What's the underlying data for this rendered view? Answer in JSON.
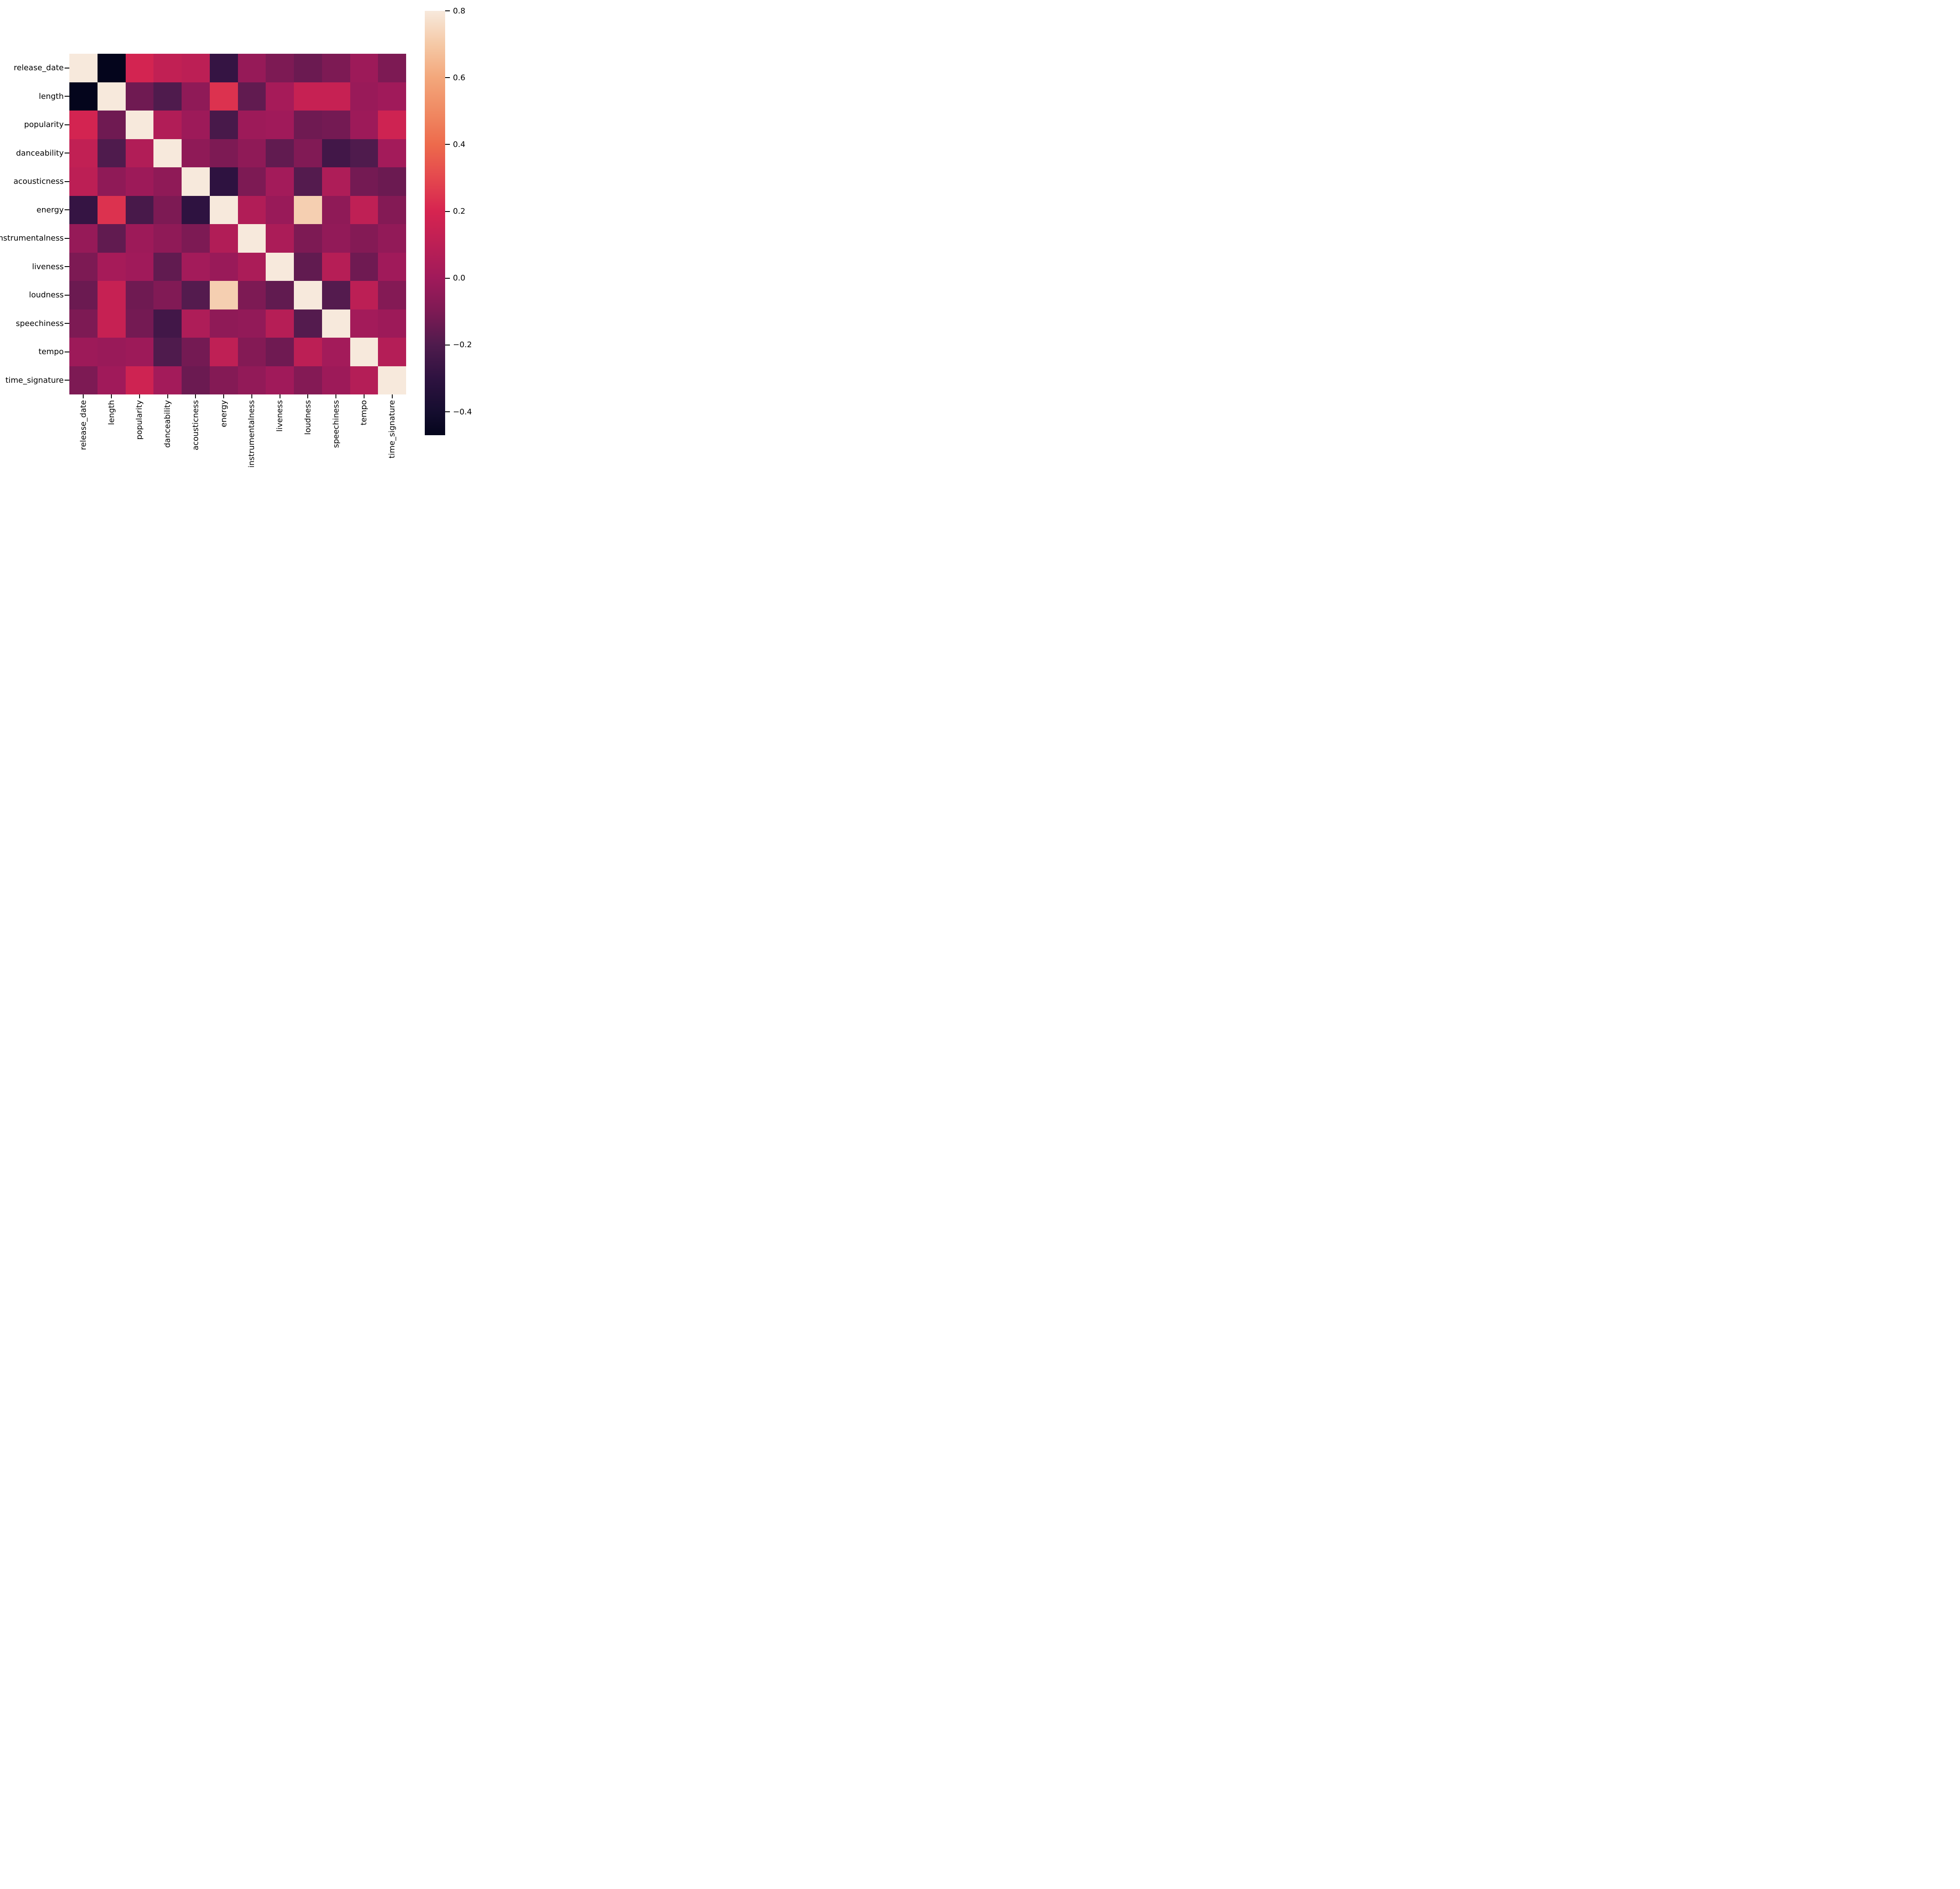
{
  "figure": {
    "background_color": "#FFFFFF",
    "text_color": "#000000"
  },
  "chart_data": {
    "type": "heatmap",
    "title": "",
    "variables": [
      "release_date",
      "length",
      "popularity",
      "danceability",
      "acousticness",
      "energy",
      "instrumentalness",
      "liveness",
      "loudness",
      "speechiness",
      "tempo",
      "time_signature"
    ],
    "matrix": [
      [
        1.0,
        -0.47,
        0.19,
        0.12,
        0.1,
        -0.28,
        -0.03,
        -0.1,
        -0.14,
        -0.1,
        -0.01,
        -0.1
      ],
      [
        -0.47,
        1.0,
        -0.13,
        -0.2,
        -0.05,
        0.24,
        -0.16,
        0.02,
        0.14,
        0.14,
        -0.02,
        0.0
      ],
      [
        0.19,
        -0.13,
        1.0,
        0.06,
        -0.01,
        -0.22,
        -0.01,
        0.0,
        -0.13,
        -0.12,
        -0.01,
        0.17
      ],
      [
        0.12,
        -0.2,
        0.06,
        1.0,
        -0.05,
        -0.1,
        -0.05,
        -0.16,
        -0.09,
        -0.24,
        -0.2,
        0.01
      ],
      [
        0.1,
        -0.05,
        -0.01,
        -0.05,
        1.0,
        -0.3,
        -0.1,
        0.01,
        -0.19,
        0.05,
        -0.12,
        -0.14
      ],
      [
        -0.28,
        0.24,
        -0.22,
        -0.1,
        -0.3,
        1.0,
        0.06,
        -0.02,
        0.72,
        -0.05,
        0.11,
        -0.08
      ],
      [
        -0.03,
        -0.16,
        -0.01,
        -0.05,
        -0.1,
        0.06,
        1.0,
        0.04,
        -0.1,
        -0.04,
        -0.08,
        -0.04
      ],
      [
        -0.1,
        0.02,
        0.0,
        -0.16,
        0.01,
        -0.02,
        0.04,
        1.0,
        -0.16,
        0.08,
        -0.13,
        0.0
      ],
      [
        -0.14,
        0.14,
        -0.13,
        -0.09,
        -0.19,
        0.72,
        -0.1,
        -0.16,
        1.0,
        -0.19,
        0.1,
        -0.08
      ],
      [
        -0.1,
        0.14,
        -0.12,
        -0.24,
        0.05,
        -0.05,
        -0.04,
        0.08,
        -0.19,
        1.0,
        0.01,
        -0.01
      ],
      [
        -0.01,
        -0.02,
        -0.01,
        -0.2,
        -0.12,
        0.11,
        -0.08,
        -0.13,
        0.1,
        0.01,
        1.0,
        0.07
      ],
      [
        -0.1,
        0.0,
        0.17,
        0.01,
        -0.14,
        -0.08,
        -0.04,
        0.0,
        -0.08,
        -0.01,
        0.07,
        1.0
      ]
    ],
    "value_range": [
      -0.47,
      0.8
    ],
    "grid": false,
    "legend_position": "right",
    "colormap_stops": [
      {
        "value": -0.47,
        "color": "#04051C"
      },
      {
        "value": -0.4,
        "color": "#150D2F"
      },
      {
        "value": -0.3,
        "color": "#2E1240"
      },
      {
        "value": -0.2,
        "color": "#4F1B4D"
      },
      {
        "value": -0.1,
        "color": "#7D1A54"
      },
      {
        "value": 0.0,
        "color": "#A01A5A"
      },
      {
        "value": 0.1,
        "color": "#BC1F55"
      },
      {
        "value": 0.2,
        "color": "#D62450"
      },
      {
        "value": 0.3,
        "color": "#E4484E"
      },
      {
        "value": 0.4,
        "color": "#ED6A4C"
      },
      {
        "value": 0.5,
        "color": "#F08A63"
      },
      {
        "value": 0.6,
        "color": "#F3A77B"
      },
      {
        "value": 0.7,
        "color": "#F5C9A6"
      },
      {
        "value": 0.8,
        "color": "#F7E9DC"
      }
    ],
    "colorbar": {
      "tick_labels": [
        "0.8",
        "0.6",
        "0.4",
        "0.2",
        "0.0",
        "−0.2",
        "−0.4"
      ],
      "tick_values": [
        0.8,
        0.6,
        0.4,
        0.2,
        0.0,
        -0.2,
        -0.4
      ]
    }
  }
}
